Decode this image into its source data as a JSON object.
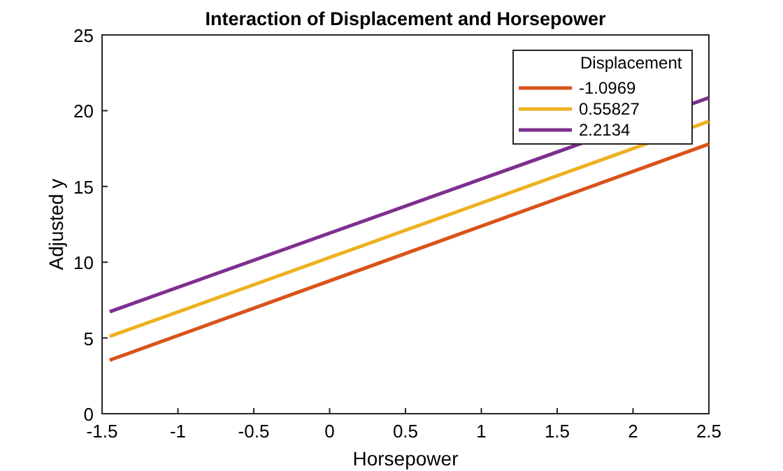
{
  "chart_data": {
    "type": "line",
    "title": "Interaction of Displacement and Horsepower",
    "xlabel": "Horsepower",
    "ylabel": "Adjusted y",
    "legend_title": "Displacement",
    "x": [
      -1.45,
      2.5
    ],
    "series": [
      {
        "name": "-1.0969",
        "color": "#d95319",
        "values": [
          3.53,
          17.8
        ]
      },
      {
        "name": "0.55827",
        "color": "#edb120",
        "values": [
          5.1,
          19.3
        ]
      },
      {
        "name": "2.2134",
        "color": "#7e2f8e",
        "values": [
          6.73,
          20.85
        ]
      }
    ],
    "xlim": [
      -1.5,
      2.5
    ],
    "xticks": [
      -1.5,
      -1,
      -0.5,
      0,
      0.5,
      1,
      1.5,
      2,
      2.5
    ],
    "ylim": [
      0,
      25
    ],
    "yticks": [
      0,
      5,
      10,
      15,
      20,
      25
    ],
    "legend": "top right",
    "grid": false,
    "marker": "none",
    "line_style": "solid"
  }
}
